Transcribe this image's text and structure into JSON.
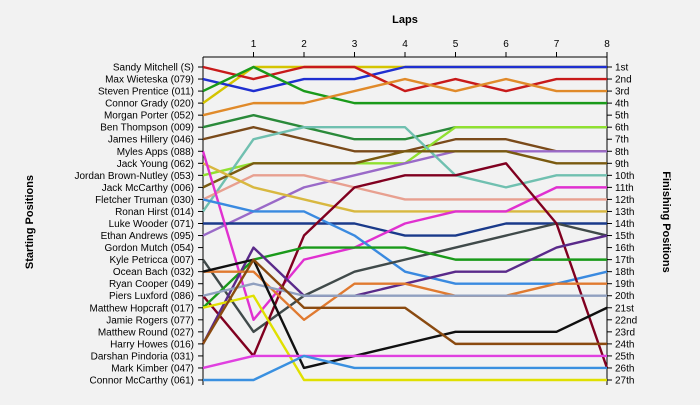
{
  "chart_data": {
    "type": "line",
    "title": "",
    "xlabel": "Laps",
    "ylabel_left": "Starting Positions",
    "ylabel_right": "Finishing Positions",
    "x": [
      0,
      1,
      2,
      3,
      4,
      5,
      6,
      7,
      8
    ],
    "x_tick_labels": [
      "1",
      "2",
      "3",
      "4",
      "5",
      "6",
      "7",
      "8"
    ],
    "ylim": [
      1,
      27
    ],
    "y_inverted": true,
    "grid": false,
    "starting_labels": [
      "Sandy Mitchell (S)",
      "Max Wieteska (079)",
      "Steven Prentice (011)",
      "Connor Grady (020)",
      "Morgan Porter (052)",
      "Ben Thompson (009)",
      "James Hillery (046)",
      "Myles Apps (088)",
      "Jack Young (062)",
      "Jordan Brown-Nutley (053)",
      "Jack McCarthy (006)",
      "Fletcher Truman (030)",
      "Ronan Hirst (014)",
      "Luke Wooder (071)",
      "Ethan Andrews (095)",
      "Gordon Mutch (054)",
      "Kyle Petricca (007)",
      "Ocean Bach (032)",
      "Ryan Cooper (049)",
      "Piers Luxford (086)",
      "Matthew Hopcraft (017)",
      "Jamie Rogers (077)",
      "Matthew Round (027)",
      "Harry Howes (016)",
      "Darshan Pindoria (031)",
      "Mark Kimber (047)",
      "Connor McCarthy (061)"
    ],
    "finishing_labels": [
      "1st",
      "2nd",
      "3rd",
      "4th",
      "5th",
      "6th",
      "7th",
      "8th",
      "9th",
      "10th",
      "11th",
      "12th",
      "13th",
      "14th",
      "15th",
      "16th",
      "17th",
      "18th",
      "19th",
      "20th",
      "21st",
      "22nd",
      "23rd",
      "24th",
      "25th",
      "26th",
      "27th"
    ],
    "series": [
      {
        "color": "#d4c400",
        "values": [
          4,
          1,
          1,
          1,
          1,
          1,
          1,
          1,
          1
        ]
      },
      {
        "color": "#1f2fd0",
        "values": [
          2,
          3,
          2,
          2,
          1,
          1,
          1,
          1,
          1
        ]
      },
      {
        "color": "#c81a1a",
        "values": [
          1,
          2,
          1,
          1,
          3,
          2,
          3,
          2,
          2
        ]
      },
      {
        "color": "#1a9a1a",
        "values": [
          3,
          1,
          3,
          4,
          4,
          4,
          4,
          4,
          4
        ]
      },
      {
        "color": "#e08a2a",
        "values": [
          5,
          4,
          4,
          3,
          2,
          3,
          2,
          3,
          3
        ]
      },
      {
        "color": "#2a8a3a",
        "values": [
          6,
          5,
          6,
          7,
          7,
          6,
          6,
          6,
          6
        ]
      },
      {
        "color": "#7a4a1a",
        "values": [
          7,
          6,
          7,
          8,
          8,
          7,
          7,
          8,
          8
        ]
      },
      {
        "color": "#90e030",
        "values": [
          10,
          9,
          9,
          9,
          9,
          6,
          6,
          6,
          6
        ]
      },
      {
        "color": "#9a6ac8",
        "values": [
          15,
          13,
          11,
          10,
          9,
          8,
          8,
          8,
          8
        ]
      },
      {
        "color": "#70c0b0",
        "values": [
          13,
          7,
          6,
          6,
          6,
          10,
          11,
          10,
          10
        ]
      },
      {
        "color": "#e8a090",
        "values": [
          12,
          10,
          10,
          11,
          12,
          12,
          12,
          12,
          12
        ]
      },
      {
        "color": "#7a5a10",
        "values": [
          11,
          9,
          9,
          9,
          8,
          8,
          8,
          9,
          9
        ]
      },
      {
        "color": "#d8b840",
        "values": [
          9,
          11,
          12,
          13,
          13,
          13,
          13,
          13,
          13
        ]
      },
      {
        "color": "#1a3a8a",
        "values": [
          14,
          14,
          14,
          14,
          15,
          15,
          14,
          14,
          14
        ]
      },
      {
        "color": "#e030d0",
        "values": [
          8,
          22,
          17,
          16,
          14,
          13,
          13,
          11,
          11
        ]
      },
      {
        "color": "#3a8ae0",
        "values": [
          12,
          13,
          13,
          15,
          18,
          19,
          19,
          19,
          18
        ]
      },
      {
        "color": "#404a4a",
        "values": [
          17,
          23,
          20,
          18,
          17,
          16,
          15,
          14,
          15
        ]
      },
      {
        "color": "#800020",
        "values": [
          20,
          25,
          15,
          11,
          10,
          10,
          9,
          14,
          26
        ]
      },
      {
        "color": "#1a9a1a",
        "values": [
          21,
          17,
          16,
          16,
          16,
          17,
          17,
          17,
          17
        ]
      },
      {
        "color": "#5a2a8a",
        "values": [
          24,
          16,
          20,
          20,
          19,
          18,
          18,
          16,
          15
        ]
      },
      {
        "color": "#e07a30",
        "values": [
          18,
          18,
          22,
          19,
          19,
          20,
          20,
          19,
          19
        ]
      },
      {
        "color": "#90a0c0",
        "values": [
          20,
          19,
          20,
          20,
          20,
          20,
          20,
          20,
          20
        ]
      },
      {
        "color": "#e0e000",
        "values": [
          21,
          20,
          27,
          27,
          27,
          27,
          27,
          27,
          27
        ]
      },
      {
        "color": "#101010",
        "values": [
          18,
          17,
          26,
          25,
          24,
          23,
          23,
          23,
          21
        ]
      },
      {
        "color": "#8a4a10",
        "values": [
          24,
          17,
          21,
          21,
          21,
          24,
          24,
          24,
          24
        ]
      },
      {
        "color": "#e040e0",
        "values": [
          26,
          25,
          25,
          25,
          25,
          25,
          25,
          25,
          25
        ]
      },
      {
        "color": "#3a90e0",
        "values": [
          27,
          27,
          25,
          26,
          26,
          26,
          26,
          26,
          26
        ]
      }
    ]
  }
}
